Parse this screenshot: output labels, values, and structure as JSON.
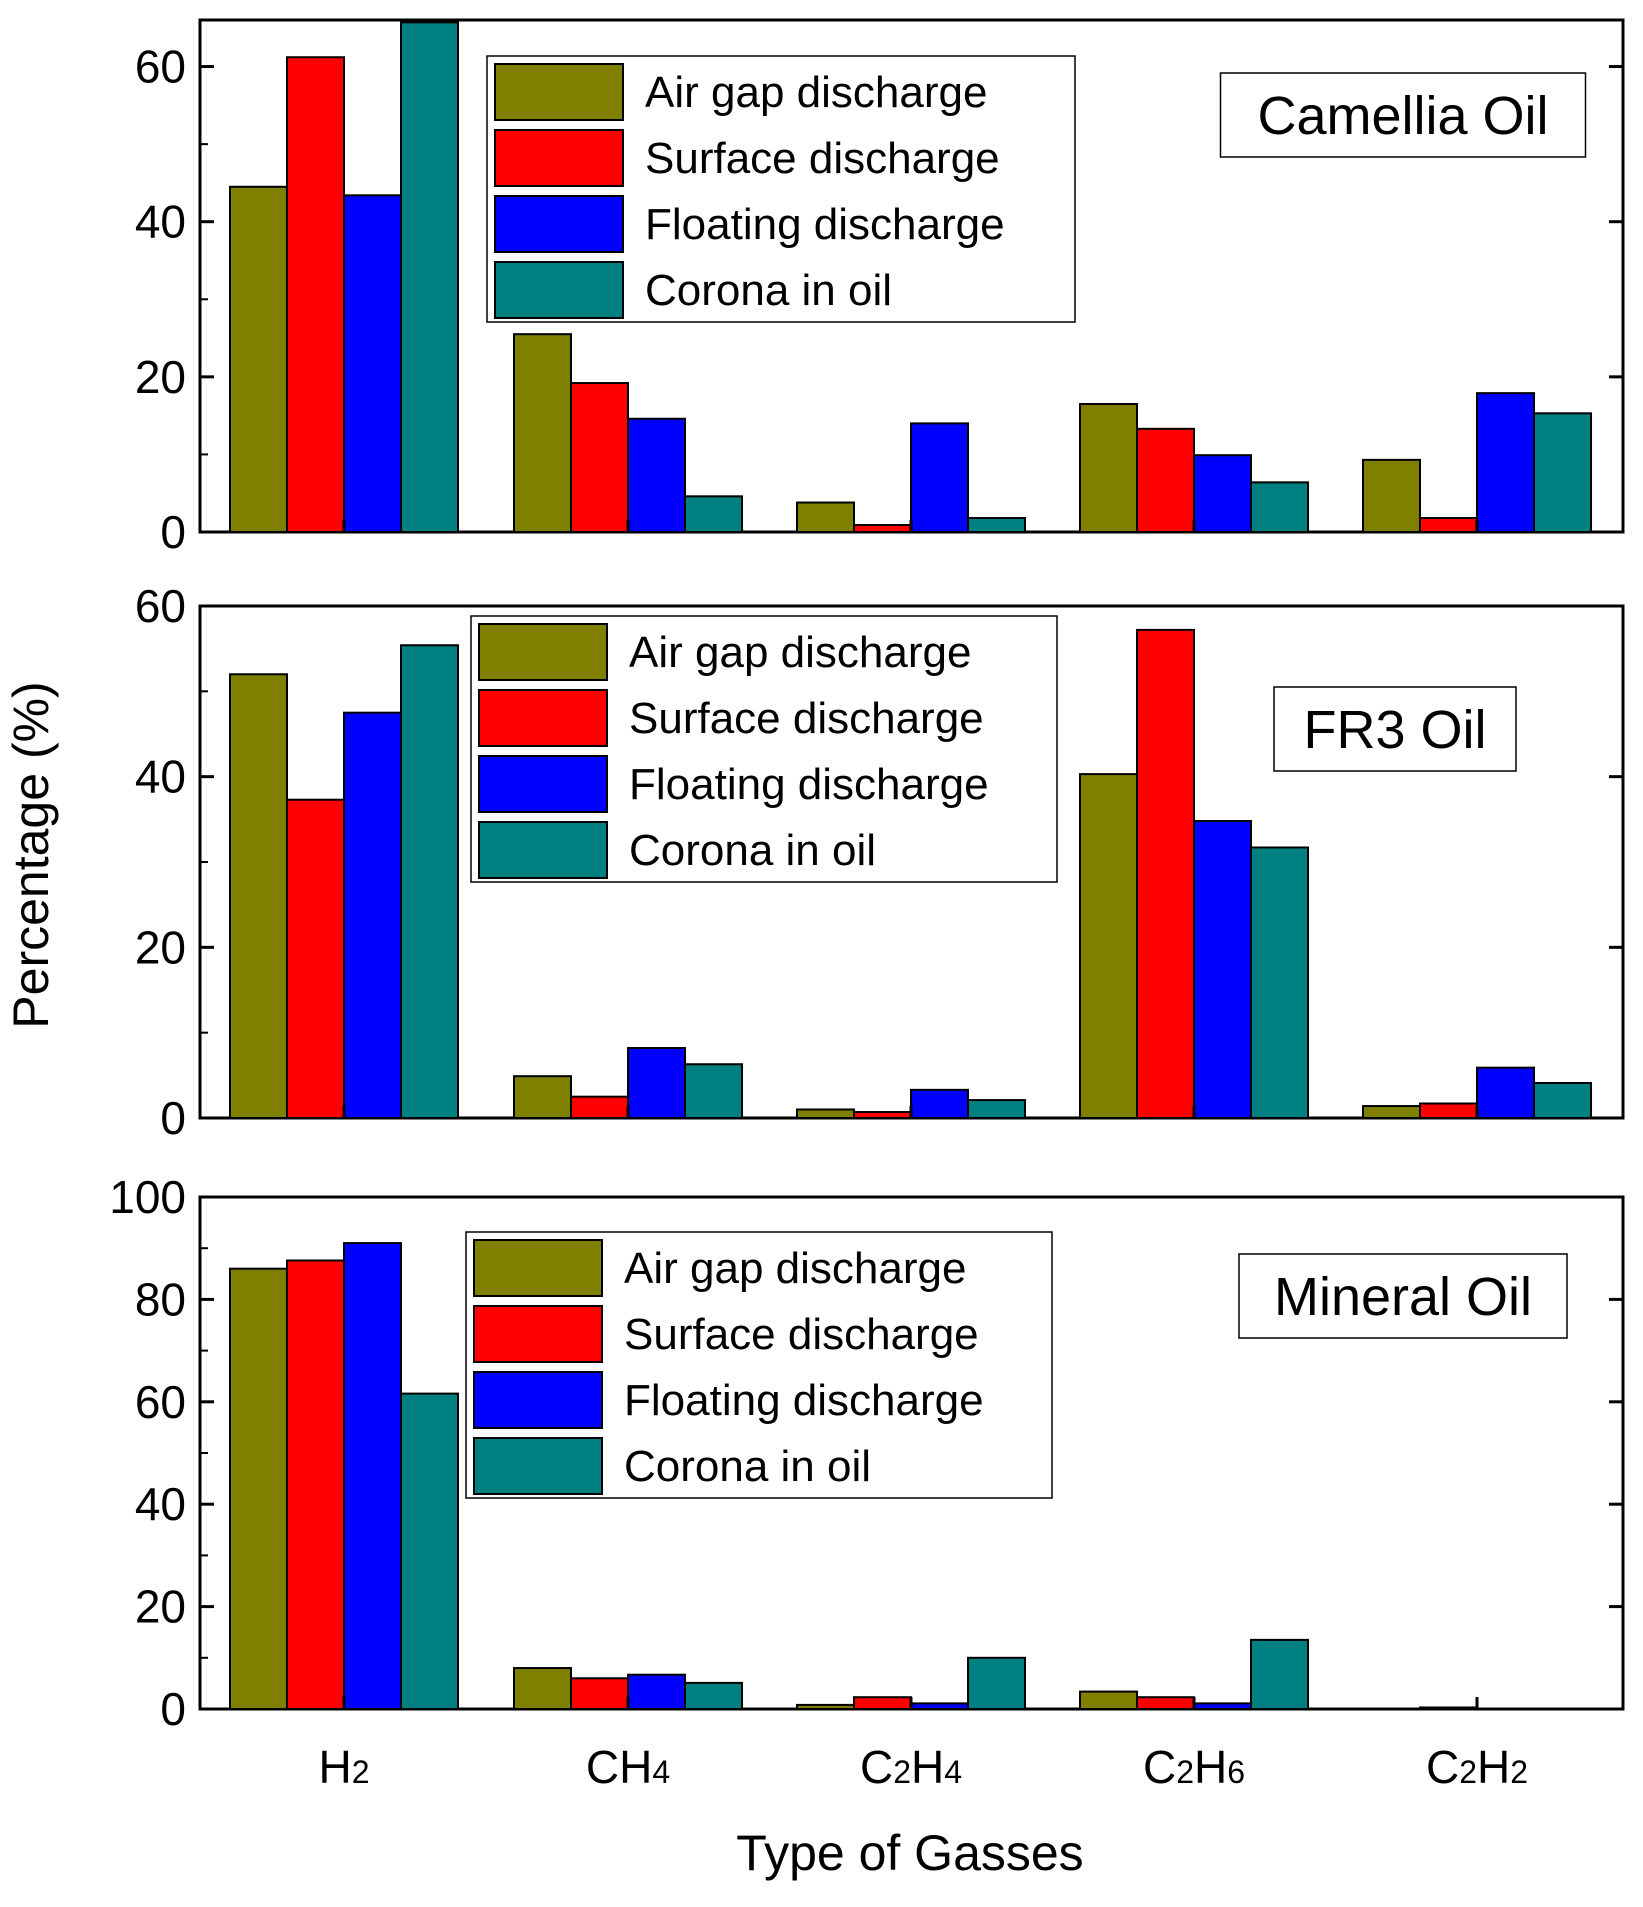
{
  "figure": {
    "xlabel": "Type of Gasses",
    "ylabel": "Percentage (%)"
  },
  "chart_data": [
    {
      "type": "bar",
      "title": "Camellia Oil",
      "categories": [
        "H2",
        "CH4",
        "C2H4",
        "C2H6",
        "C2H2"
      ],
      "series": [
        {
          "name": "Air gap discharge",
          "values": [
            44.5,
            25.5,
            3.8,
            16.5,
            9.3
          ]
        },
        {
          "name": "Surface discharge",
          "values": [
            61.2,
            19.2,
            0.9,
            13.3,
            1.8
          ]
        },
        {
          "name": "Floating discharge",
          "values": [
            43.4,
            14.6,
            14.0,
            9.9,
            17.9
          ]
        },
        {
          "name": "Corona in oil",
          "values": [
            65.7,
            4.6,
            1.8,
            6.4,
            15.3
          ]
        }
      ],
      "ylim": [
        0,
        66
      ],
      "yticks": [
        0,
        20,
        40,
        60
      ],
      "legend_position": "top-center"
    },
    {
      "type": "bar",
      "title": "FR3 Oil",
      "categories": [
        "H2",
        "CH4",
        "C2H4",
        "C2H6",
        "C2H2"
      ],
      "series": [
        {
          "name": "Air gap discharge",
          "values": [
            52.0,
            4.9,
            1.0,
            40.3,
            1.4
          ]
        },
        {
          "name": "Surface discharge",
          "values": [
            37.3,
            2.5,
            0.7,
            57.2,
            1.7
          ]
        },
        {
          "name": "Floating discharge",
          "values": [
            47.5,
            8.2,
            3.3,
            34.8,
            5.9
          ]
        },
        {
          "name": "Corona in oil",
          "values": [
            55.4,
            6.3,
            2.1,
            31.7,
            4.1
          ]
        }
      ],
      "ylim": [
        0,
        60
      ],
      "yticks": [
        0,
        20,
        40,
        60
      ],
      "legend_position": "top-center"
    },
    {
      "type": "bar",
      "title": "Mineral Oil",
      "categories": [
        "H2",
        "CH4",
        "C2H4",
        "C2H6",
        "C2H2"
      ],
      "series": [
        {
          "name": "Air gap discharge",
          "values": [
            86.0,
            8.0,
            0.8,
            3.4,
            0.0
          ]
        },
        {
          "name": "Surface discharge",
          "values": [
            87.6,
            6.0,
            2.3,
            2.3,
            0.3
          ]
        },
        {
          "name": "Floating discharge",
          "values": [
            91.0,
            6.7,
            1.1,
            1.1,
            0.0
          ]
        },
        {
          "name": "Corona in oil",
          "values": [
            61.6,
            5.1,
            10.0,
            13.5,
            0.0
          ]
        }
      ],
      "ylim": [
        0,
        100
      ],
      "yticks": [
        0,
        20,
        40,
        60,
        80,
        100
      ],
      "legend_position": "top-center"
    }
  ],
  "colors": [
    "#808000",
    "#ff0000",
    "#0000ff",
    "#008080"
  ],
  "category_labels": [
    {
      "base": "H",
      "sub": "2"
    },
    {
      "base": "CH",
      "sub": "4"
    },
    {
      "base": "C",
      "sub": "2",
      "mid": "H",
      "sub2": "4"
    },
    {
      "base": "C",
      "sub": "2",
      "mid": "H",
      "sub2": "6"
    },
    {
      "base": "C",
      "sub": "2",
      "mid": "H",
      "sub2": "2"
    }
  ]
}
